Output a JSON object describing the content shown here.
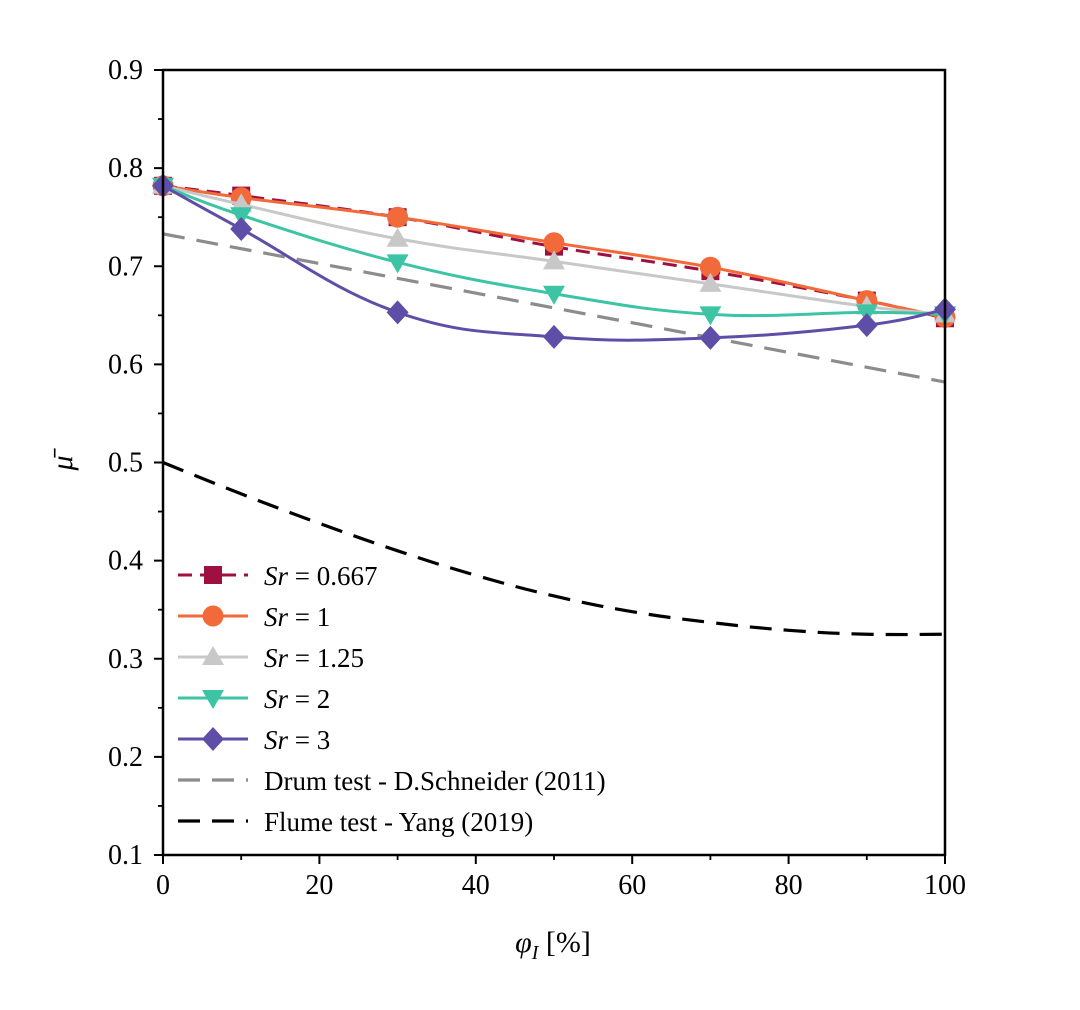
{
  "chart_data": {
    "type": "line",
    "title": "",
    "xlabel": "φI [%]",
    "xlabel_main": "φ",
    "xlabel_sub": "I",
    "xlabel_unit": " [%]",
    "ylabel": "μ̄",
    "xlim": [
      0,
      100
    ],
    "ylim": [
      0.1,
      0.9
    ],
    "xticks": [
      0,
      20,
      40,
      60,
      80,
      100
    ],
    "xtick_labels": [
      "0",
      "20",
      "40",
      "60",
      "80",
      "100"
    ],
    "yticks": [
      0.1,
      0.2,
      0.3,
      0.4,
      0.5,
      0.6,
      0.7,
      0.8,
      0.9
    ],
    "ytick_labels": [
      "0.1",
      "0.2",
      "0.3",
      "0.4",
      "0.5",
      "0.6",
      "0.7",
      "0.8",
      "0.9"
    ],
    "grid": false,
    "legend_position": "bottom-left",
    "series": [
      {
        "name": "Sr = 0.667",
        "prefix": "Sr",
        "suffix": " = 0.667",
        "color": "#9e1040",
        "marker": "square",
        "dash": "14,8",
        "x": [
          0,
          10,
          30,
          50,
          70,
          90,
          100
        ],
        "values": [
          0.782,
          0.772,
          0.75,
          0.72,
          0.695,
          0.665,
          0.647
        ]
      },
      {
        "name": "Sr = 1",
        "prefix": "Sr",
        "suffix": " = 1",
        "color": "#f26a3a",
        "marker": "circle",
        "dash": "",
        "x": [
          0,
          10,
          30,
          50,
          70,
          90,
          100
        ],
        "values": [
          0.782,
          0.77,
          0.75,
          0.724,
          0.699,
          0.665,
          0.648
        ]
      },
      {
        "name": "Sr = 1.25",
        "prefix": "Sr",
        "suffix": " = 1.25",
        "color": "#c8c8c8",
        "marker": "triangle-up",
        "dash": "",
        "x": [
          0,
          10,
          30,
          50,
          70,
          90,
          100
        ],
        "values": [
          0.782,
          0.763,
          0.728,
          0.705,
          0.682,
          0.659,
          0.651
        ]
      },
      {
        "name": "Sr = 2",
        "prefix": "Sr",
        "suffix": " = 2",
        "color": "#3cc4a4",
        "marker": "triangle-down",
        "dash": "",
        "x": [
          0,
          10,
          30,
          50,
          70,
          90,
          100
        ],
        "values": [
          0.782,
          0.752,
          0.704,
          0.672,
          0.651,
          0.653,
          0.651
        ]
      },
      {
        "name": "Sr = 3",
        "prefix": "Sr",
        "suffix": " = 3",
        "color": "#5f4ea8",
        "marker": "diamond",
        "dash": "",
        "x": [
          0,
          10,
          30,
          50,
          70,
          90,
          100
        ],
        "values": [
          0.782,
          0.738,
          0.653,
          0.628,
          0.627,
          0.64,
          0.656
        ]
      }
    ],
    "reference_lines": [
      {
        "name": "Drum test - D.Schneider (2011)",
        "color": "#8c8c8c",
        "dash": "22,12",
        "x": [
          0,
          100
        ],
        "values": [
          0.733,
          0.582
        ]
      },
      {
        "name": "Flume test - Yang (2019)",
        "color": "#000000",
        "dash": "22,12",
        "x": [
          0,
          10,
          20,
          30,
          40,
          50,
          60,
          70,
          80,
          90,
          100
        ],
        "values": [
          0.5,
          0.468,
          0.438,
          0.41,
          0.385,
          0.364,
          0.348,
          0.337,
          0.329,
          0.325,
          0.325
        ]
      }
    ]
  }
}
